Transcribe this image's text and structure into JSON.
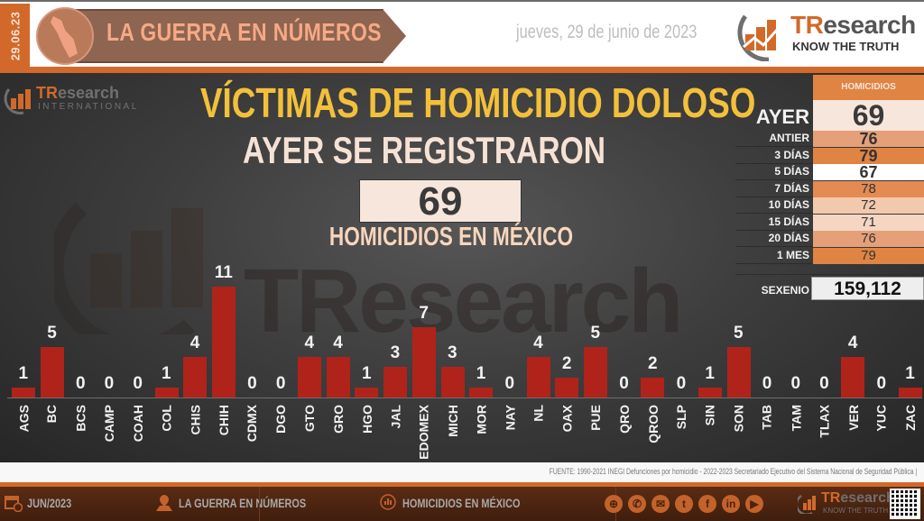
{
  "header": {
    "date_tab": "29.06.23",
    "banner_title": "LA GUERRA EN NÚMEROS",
    "date_long": "jueves, 29 de junio de 2023",
    "logo_brand_tr": "TR",
    "logo_brand_rest": "esearch",
    "logo_tagline": "KNOW THE TRUTH"
  },
  "main": {
    "logo_intl_tr": "TR",
    "logo_intl_rest": "esearch",
    "logo_intl_sub": "INTERNATIONAL",
    "watermark": "TResearch",
    "title": "VÍCTIMAS DE HOMICIDIO DOLOSO",
    "subtitle": "AYER SE REGISTRARON",
    "big_value": "69",
    "caption": "HOMICIDIOS EN MÉXICO"
  },
  "stats": {
    "header": "HOMICIDIOS",
    "ayer_label": "AYER",
    "ayer_value": "69",
    "rows": [
      {
        "label": "ANTIER",
        "value": "76",
        "color": "#e6a079"
      },
      {
        "label": "3 DÍAS",
        "value": "79",
        "color": "#e08443"
      },
      {
        "label": "5 DÍAS",
        "value": "67",
        "color": "#ffffff"
      },
      {
        "label": "7 DÍAS",
        "value": "78",
        "color": "#e38b52"
      },
      {
        "label": "10 DÍAS",
        "value": "72",
        "color": "#f2c9ad"
      },
      {
        "label": "15 DÍAS",
        "value": "71",
        "color": "#f4d6c2"
      },
      {
        "label": "20 DÍAS",
        "value": "76",
        "color": "#e6a079"
      },
      {
        "label": "1 MES",
        "value": "79",
        "color": "#e08443"
      }
    ],
    "sexenio_label": "SEXENIO",
    "sexenio_value": "159,112"
  },
  "chart_data": {
    "type": "bar",
    "title": "VÍCTIMAS DE HOMICIDIO DOLOSO",
    "xlabel": "",
    "ylabel": "",
    "categories": [
      "AGS",
      "BC",
      "BCS",
      "CAMP",
      "COAH",
      "COL",
      "CHIS",
      "CHIH",
      "CDMX",
      "DGO",
      "GTO",
      "GRO",
      "HGO",
      "JAL",
      "EDOMEX",
      "MICH",
      "MOR",
      "NAY",
      "NL",
      "OAX",
      "PUE",
      "QRO",
      "QROO",
      "SLP",
      "SIN",
      "SON",
      "TAB",
      "TAM",
      "TLAX",
      "VER",
      "YUC",
      "ZAC"
    ],
    "values": [
      1,
      5,
      0,
      0,
      0,
      1,
      4,
      11,
      0,
      0,
      4,
      4,
      1,
      3,
      7,
      3,
      1,
      0,
      4,
      2,
      5,
      0,
      2,
      0,
      1,
      5,
      0,
      0,
      0,
      4,
      0,
      1
    ],
    "bar_color": "#b0231a",
    "ylim": [
      0,
      11
    ],
    "grid": false,
    "legend": "none"
  },
  "source": "FUENTE: 1990-2021 INEGI Defunciones por homicidio - 2022-2023 Secretariado Ejecutivo del Sistema Nacional de Seguridad Pública |",
  "footer": {
    "month": "JUN/2023",
    "section": "LA GUERRA EN NÚMEROS",
    "topic": "HOMICIDIOS EN MÉXICO",
    "social_icons": [
      "globe-icon",
      "whatsapp-icon",
      "email-icon",
      "twitter-icon",
      "facebook-icon",
      "linkedin-icon",
      "youtube-icon"
    ],
    "logo_tr": "TR",
    "logo_rest": "esearch",
    "logo_tagline": "KNOW THE TRUTH"
  },
  "colors": {
    "accent": "#d2692a",
    "title_yellow": "#f2c03a",
    "bar_red": "#b0231a"
  }
}
